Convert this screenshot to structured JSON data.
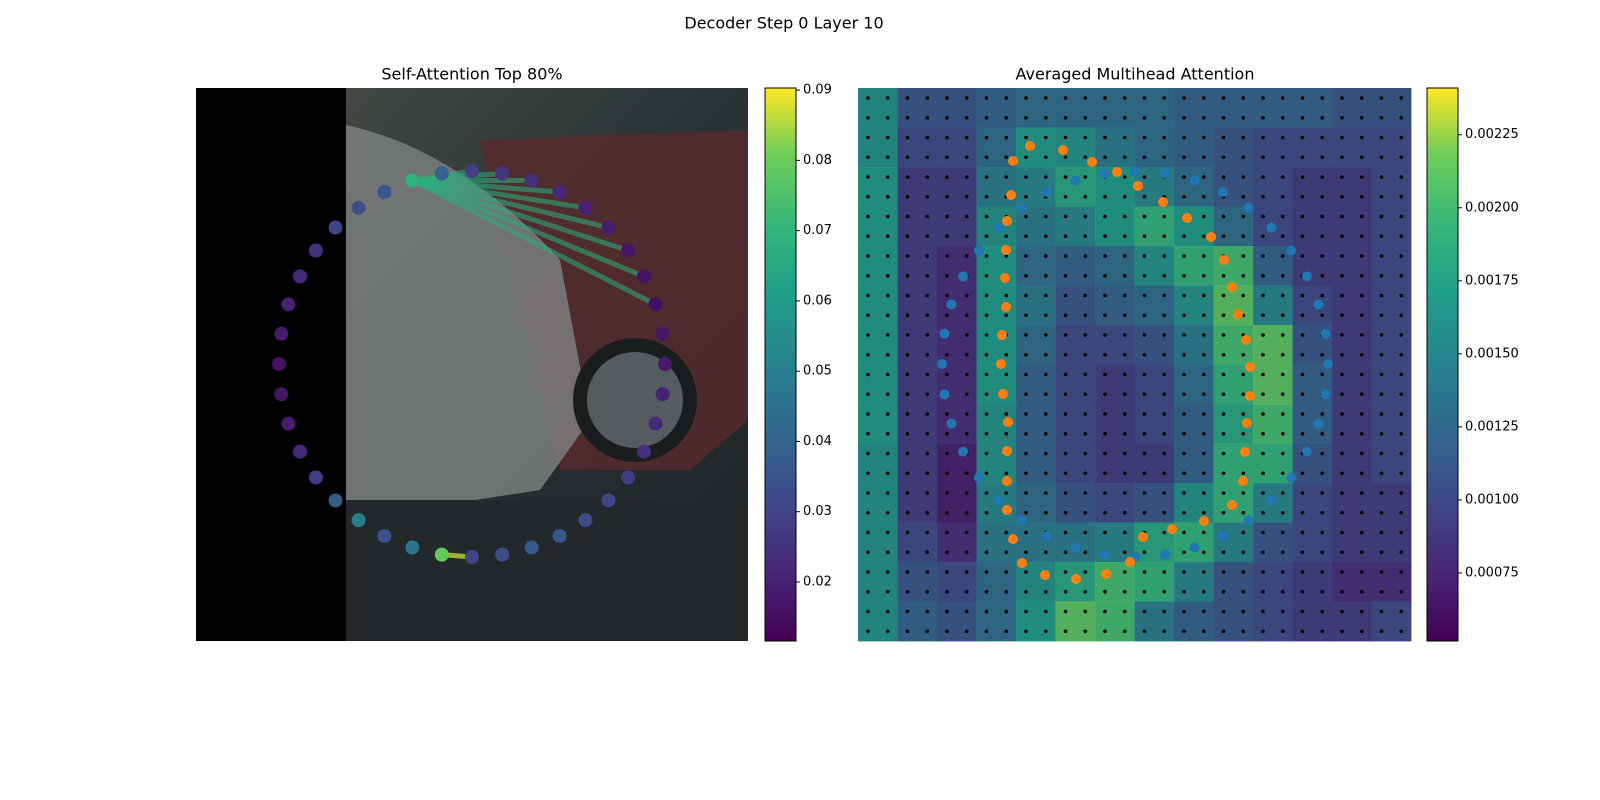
{
  "suptitle": "Decoder Step 0 Layer 10",
  "chart_data": [
    {
      "type": "scatter",
      "title": "Self-Attention Top 80%",
      "colormap": "viridis",
      "values": [
        0.028,
        0.026,
        0.024,
        0.022,
        0.02,
        0.019,
        0.017,
        0.016,
        0.015,
        0.017,
        0.018,
        0.02,
        0.022,
        0.024,
        0.027,
        0.03,
        0.033,
        0.036,
        0.037,
        0.033,
        0.03,
        0.079,
        0.046,
        0.034,
        0.05,
        0.038,
        0.028,
        0.022,
        0.019,
        0.017,
        0.016,
        0.018,
        0.02,
        0.022,
        0.025,
        0.03,
        0.033,
        0.036,
        0.068,
        0.04
      ],
      "clim": [
        0.0116,
        0.0903
      ],
      "cticks": [
        0.02,
        0.03,
        0.04,
        0.05,
        0.06,
        0.07,
        0.08,
        0.09
      ]
    },
    {
      "type": "heatmap",
      "title": "Averaged Multihead Attention",
      "colormap": "viridis",
      "values": [
        [
          0.0016,
          0.0011,
          0.0011,
          0.0012,
          0.0013,
          0.0013,
          0.0013,
          0.0013,
          0.0012,
          0.0012,
          0.0012,
          0.0012,
          0.0011,
          0.0011
        ],
        [
          0.0016,
          0.001,
          0.001,
          0.0013,
          0.0017,
          0.0016,
          0.0014,
          0.0013,
          0.0012,
          0.0011,
          0.001,
          0.001,
          0.001,
          0.001
        ],
        [
          0.0017,
          0.0009,
          0.0009,
          0.0014,
          0.0015,
          0.0018,
          0.0017,
          0.0015,
          0.0013,
          0.0011,
          0.001,
          0.0009,
          0.0009,
          0.001
        ],
        [
          0.0017,
          0.0009,
          0.0009,
          0.0016,
          0.0014,
          0.0015,
          0.0017,
          0.0019,
          0.0017,
          0.0013,
          0.001,
          0.0009,
          0.0009,
          0.001
        ],
        [
          0.0017,
          0.0009,
          0.0008,
          0.0017,
          0.0013,
          0.0012,
          0.0013,
          0.0016,
          0.0019,
          0.002,
          0.0012,
          0.0009,
          0.0009,
          0.001
        ],
        [
          0.0017,
          0.0009,
          0.0008,
          0.0017,
          0.0014,
          0.0011,
          0.0012,
          0.0013,
          0.0016,
          0.0021,
          0.0015,
          0.001,
          0.0009,
          0.001
        ],
        [
          0.0017,
          0.0009,
          0.0008,
          0.0017,
          0.0013,
          0.001,
          0.001,
          0.0011,
          0.0014,
          0.002,
          0.0021,
          0.0011,
          0.0009,
          0.001
        ],
        [
          0.0017,
          0.0009,
          0.0008,
          0.0017,
          0.0012,
          0.001,
          0.0009,
          0.001,
          0.0013,
          0.0019,
          0.0021,
          0.0012,
          0.0009,
          0.001
        ],
        [
          0.0017,
          0.0009,
          0.0008,
          0.0016,
          0.0012,
          0.001,
          0.0009,
          0.001,
          0.0012,
          0.0018,
          0.002,
          0.0012,
          0.0009,
          0.001
        ],
        [
          0.0016,
          0.0009,
          0.0007,
          0.0016,
          0.0012,
          0.001,
          0.0009,
          0.0009,
          0.0012,
          0.0019,
          0.0019,
          0.0011,
          0.0009,
          0.001
        ],
        [
          0.0016,
          0.0009,
          0.0007,
          0.0015,
          0.0013,
          0.0011,
          0.001,
          0.0011,
          0.0016,
          0.0019,
          0.0015,
          0.001,
          0.0009,
          0.0009
        ],
        [
          0.0016,
          0.001,
          0.0008,
          0.0014,
          0.0014,
          0.0014,
          0.0015,
          0.0018,
          0.0019,
          0.0015,
          0.0011,
          0.001,
          0.0009,
          0.0009
        ],
        [
          0.0016,
          0.0011,
          0.001,
          0.0013,
          0.0016,
          0.0018,
          0.002,
          0.0019,
          0.0015,
          0.0011,
          0.001,
          0.0009,
          0.0008,
          0.0008
        ],
        [
          0.0016,
          0.0012,
          0.0011,
          0.0013,
          0.0017,
          0.0021,
          0.002,
          0.0014,
          0.0012,
          0.0011,
          0.001,
          0.0009,
          0.0009,
          0.001
        ]
      ],
      "clim": [
        0.000517,
        0.00241
      ],
      "cticks": [
        0.00075,
        {
          "value": 0.001,
          "label": "0.00100"
        },
        0.00125,
        {
          "value": 0.0015,
          "label": "0.00150"
        },
        0.00175,
        {
          "value": 0.002,
          "label": "0.00200"
        },
        0.00225
      ]
    }
  ]
}
